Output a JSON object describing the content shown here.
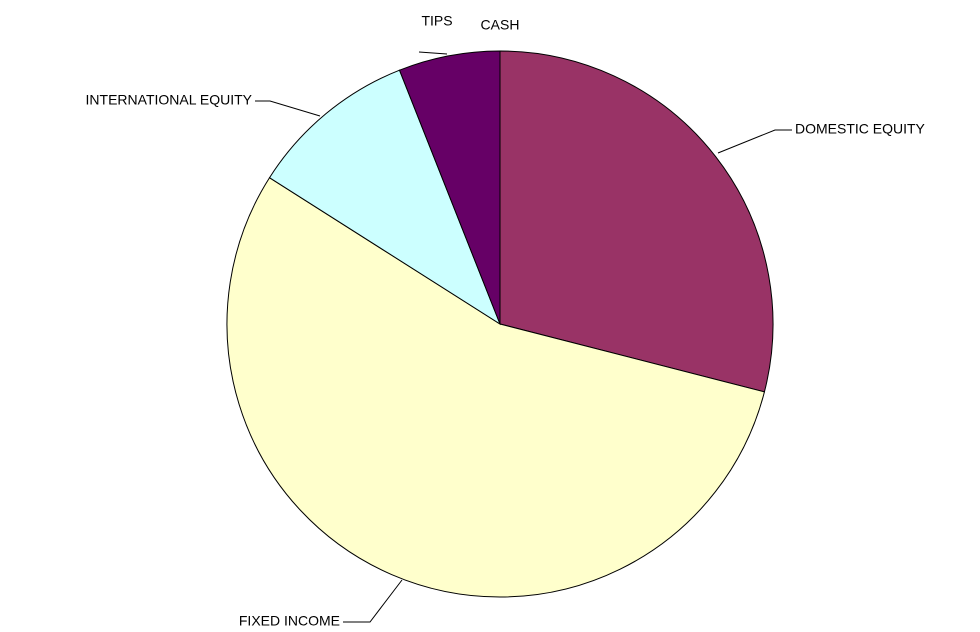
{
  "chart_data": {
    "type": "pie",
    "categories": [
      "DOMESTIC EQUITY",
      "FIXED INCOME",
      "INTERNATIONAL EQUITY",
      "TIPS",
      "CASH"
    ],
    "values": [
      29,
      55,
      10,
      6,
      0
    ],
    "colors": [
      "#993366",
      "#ffffcc",
      "#ccffff",
      "#660066",
      "#9999ff"
    ],
    "start_angle": 90,
    "direction": "clockwise"
  }
}
